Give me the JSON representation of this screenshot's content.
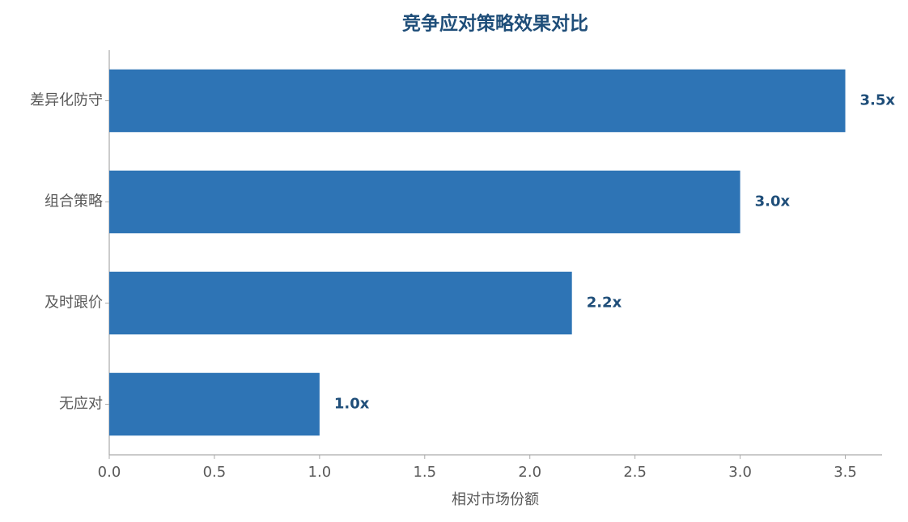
{
  "chart_data": {
    "type": "barh",
    "title": "竞争应对策略效果对比",
    "x_label": "相对市场份额",
    "categories": [
      "差异化防守",
      "组合策略",
      "及时跟价",
      "无应对"
    ],
    "values": [
      3.5,
      3.0,
      2.2,
      1.0
    ],
    "value_labels": [
      "3.5x",
      "3.0x",
      "2.2x",
      "1.0x"
    ],
    "color": "#2e74b5",
    "xlim": [
      0,
      3.675
    ],
    "xticks": [
      {
        "value": 0,
        "label": "0.0"
      },
      0.5,
      {
        "value": 1,
        "label": "1.0"
      },
      1.5,
      {
        "value": 2,
        "label": "2.0"
      },
      2.5,
      {
        "value": 3,
        "label": "3.0"
      },
      3.5
    ],
    "grid": false
  }
}
